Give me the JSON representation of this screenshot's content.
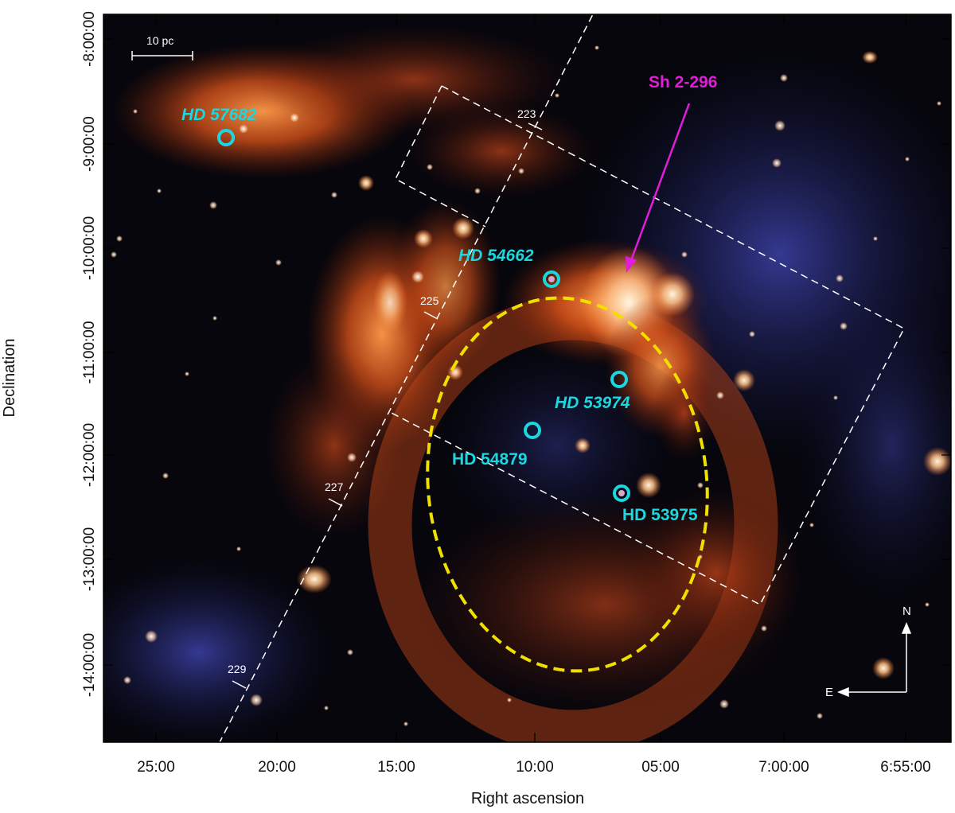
{
  "figure": {
    "x_axis_label": "Right ascension",
    "y_axis_label": "Declination",
    "x_ticks": [
      "25:00",
      "20:00",
      "15:00",
      "10:00",
      "05:00",
      "7:00:00",
      "6:55:00"
    ],
    "y_ticks": [
      "-8:00:00",
      "-9:00:00",
      "-10:00:00",
      "-11:00:00",
      "-12:00:00",
      "-13:00:00",
      "-14:00:00"
    ],
    "scale_bar_label": "10 pc",
    "region_label": "Sh 2-296",
    "stars": [
      {
        "name": "HD 57682",
        "italic": true
      },
      {
        "name": "HD 54662",
        "italic": true
      },
      {
        "name": "HD 53974",
        "italic": true
      },
      {
        "name": "HD 54879",
        "italic": false
      },
      {
        "name": "HD 53975",
        "italic": false
      }
    ],
    "longitude_marks": [
      "223",
      "225",
      "227",
      "229"
    ],
    "compass": {
      "north": "N",
      "east": "E"
    },
    "colors": {
      "star_marker": "#19d8e0",
      "region_arrow": "#e21cd8",
      "ellipse": "#f0e000",
      "survey_lines": "#ffffff",
      "nebula": "#e0551a"
    }
  }
}
